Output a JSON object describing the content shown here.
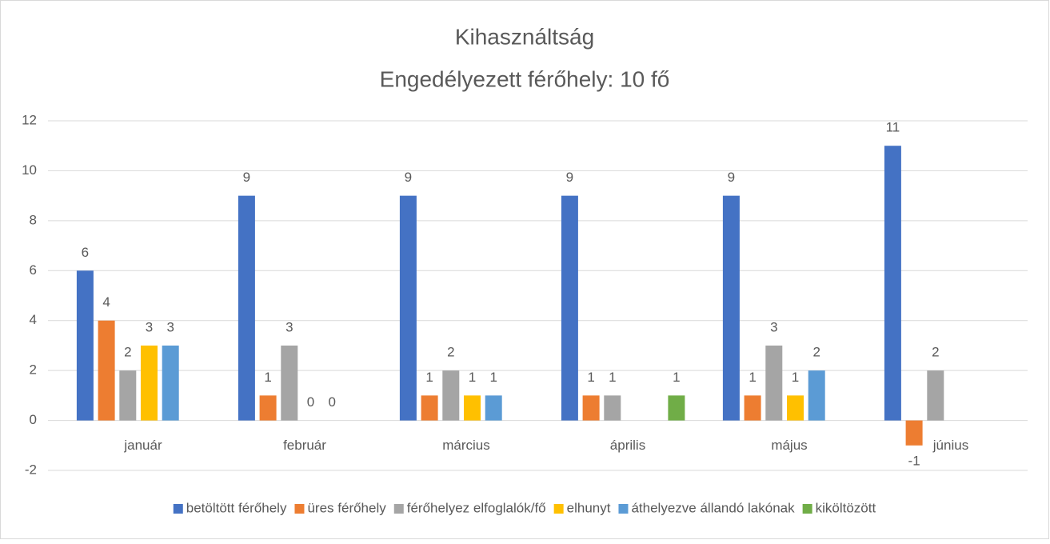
{
  "chart_data": {
    "type": "bar",
    "title": "Kihasználtság",
    "subtitle": "Engedélyezett férőhely: 10 fő",
    "categories": [
      "január",
      "február",
      "március",
      "április",
      "május",
      "június"
    ],
    "series": [
      {
        "name": "betöltött férőhely",
        "color": "#4472c4",
        "values": [
          6,
          9,
          9,
          9,
          9,
          11
        ]
      },
      {
        "name": "üres férőhely",
        "color": "#ed7d31",
        "values": [
          4,
          1,
          1,
          1,
          1,
          -1
        ]
      },
      {
        "name": "férőhelyez elfoglalók/fő",
        "color": "#a5a5a5",
        "values": [
          2,
          3,
          2,
          1,
          3,
          2
        ]
      },
      {
        "name": "elhunyt",
        "color": "#ffc000",
        "values": [
          3,
          0,
          1,
          null,
          1,
          null
        ]
      },
      {
        "name": "áthelyezve állandó lakónak",
        "color": "#5b9bd5",
        "values": [
          3,
          0,
          1,
          null,
          2,
          null
        ]
      },
      {
        "name": "kiköltözött",
        "color": "#70ad47",
        "values": [
          null,
          null,
          null,
          1,
          null,
          null
        ]
      }
    ],
    "ylim": [
      -2,
      12
    ],
    "yticks": [
      -2,
      0,
      2,
      4,
      6,
      8,
      10,
      12
    ],
    "grid": true,
    "legend": "bottom"
  }
}
